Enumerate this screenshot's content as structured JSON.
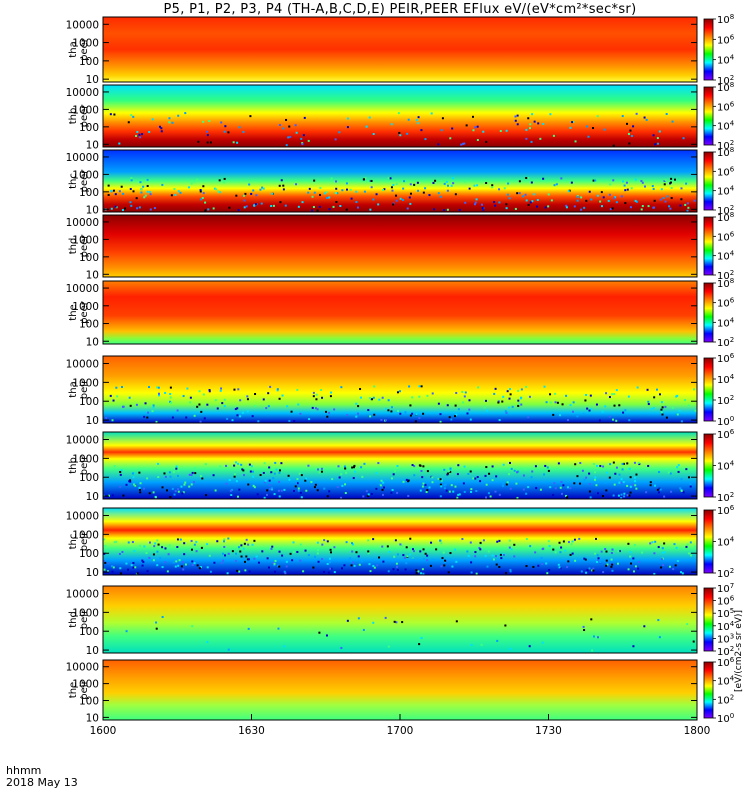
{
  "title": "P5, P1, P2, P3, P4 (TH-A,B,C,D,E) PEIR,PEER EFlux eV/(eV*cm²*sec*sr)",
  "time_axis": {
    "label": "hhmm",
    "date": "2018 May 13"
  },
  "colorbar_unit": "[eV/(cm2-s sr eV)]",
  "colors": {
    "dark_red": "#8b0000",
    "red": "#ff0000",
    "orange": "#ff7f00",
    "yellow": "#ffff00",
    "green": "#00ff00",
    "cyan": "#00ffff",
    "blue": "#0000ff",
    "violet": "#7f00ff"
  },
  "chart_data": {
    "type": "heatmap",
    "x": {
      "unit": "hhmm",
      "range": [
        "1600",
        "1800"
      ],
      "ticks": [
        "1600",
        "1630",
        "1700",
        "1730",
        "1800"
      ]
    },
    "y": {
      "scale": "log",
      "unit": "eV",
      "range": [
        7,
        25000
      ],
      "ticks": [
        "10",
        "100",
        "1000",
        "10000"
      ]
    },
    "panels": [
      {
        "label": "tha\npeer",
        "cb_max_exp": 8,
        "cb_min_exp": 2,
        "cb_ticks": [
          "8",
          "6",
          "4",
          "2"
        ],
        "bands": [
          [
            0.0,
            "#ff2a00"
          ],
          [
            0.25,
            "#ff5000"
          ],
          [
            0.5,
            "#ff3000"
          ],
          [
            0.75,
            "#ff9000"
          ],
          [
            0.9,
            "#ffd000"
          ],
          [
            1.0,
            "#ffff40"
          ]
        ],
        "noise": 0.0
      },
      {
        "label": "thb\npeer",
        "cb_max_exp": 8,
        "cb_min_exp": 2,
        "cb_ticks": [
          "8",
          "6",
          "4",
          "2"
        ],
        "bands": [
          [
            0.0,
            "#00e0ff"
          ],
          [
            0.25,
            "#30ff80"
          ],
          [
            0.45,
            "#ffff00"
          ],
          [
            0.6,
            "#ff9000"
          ],
          [
            0.75,
            "#ff3000"
          ],
          [
            0.88,
            "#c00000"
          ],
          [
            1.0,
            "#8b0000"
          ]
        ],
        "noise": 0.15
      },
      {
        "label": "thc\npeer",
        "cb_max_exp": 8,
        "cb_min_exp": 2,
        "cb_ticks": [
          "8",
          "6",
          "4",
          "2"
        ],
        "bands": [
          [
            0.0,
            "#0030ff"
          ],
          [
            0.35,
            "#00a0ff"
          ],
          [
            0.5,
            "#40ff80"
          ],
          [
            0.62,
            "#ffff00"
          ],
          [
            0.75,
            "#ff5000"
          ],
          [
            0.88,
            "#c00000"
          ],
          [
            1.0,
            "#8b0000"
          ]
        ],
        "noise": 0.35
      },
      {
        "label": "thd\npeer",
        "cb_max_exp": 8,
        "cb_min_exp": 2,
        "cb_ticks": [
          "8",
          "6",
          "4",
          "2"
        ],
        "bands": [
          [
            0.0,
            "#8b0000"
          ],
          [
            0.3,
            "#e00000"
          ],
          [
            0.6,
            "#ff4000"
          ],
          [
            0.85,
            "#ff9000"
          ],
          [
            1.0,
            "#ffd000"
          ]
        ],
        "noise": 0.0
      },
      {
        "label": "the\npeer",
        "cb_max_exp": 8,
        "cb_min_exp": 2,
        "cb_ticks": [
          "8",
          "6",
          "4",
          "2"
        ],
        "bands": [
          [
            0.0,
            "#ff8000"
          ],
          [
            0.25,
            "#ff2000"
          ],
          [
            0.55,
            "#ff4000"
          ],
          [
            0.8,
            "#ffc000"
          ],
          [
            0.92,
            "#80ff40"
          ],
          [
            1.0,
            "#40ff80"
          ]
        ],
        "noise": 0.0
      },
      {
        "label": "tha\npeir",
        "cb_max_exp": 6,
        "cb_min_exp": 0,
        "cb_ticks": [
          "6",
          "4",
          "2",
          "0"
        ],
        "bands": [
          [
            0.0,
            "#ff6000"
          ],
          [
            0.3,
            "#ffa000"
          ],
          [
            0.55,
            "#ffff00"
          ],
          [
            0.72,
            "#80ff40"
          ],
          [
            0.85,
            "#00c0ff"
          ],
          [
            1.0,
            "#0000c0"
          ]
        ],
        "noise": 0.3
      },
      {
        "label": "thb\npeir",
        "cb_max_exp": 6,
        "cb_min_exp": 2,
        "cb_ticks": [
          "6",
          "4",
          "2"
        ],
        "bands": [
          [
            0.0,
            "#00e0c0"
          ],
          [
            0.2,
            "#ffff00"
          ],
          [
            0.3,
            "#ff3000"
          ],
          [
            0.4,
            "#ffff00"
          ],
          [
            0.55,
            "#40ff80"
          ],
          [
            0.75,
            "#00a0ff"
          ],
          [
            1.0,
            "#0000c0"
          ]
        ],
        "noise": 0.45
      },
      {
        "label": "thc\npeir",
        "cb_max_exp": 6,
        "cb_min_exp": 2,
        "cb_ticks": [
          "6",
          "4",
          "2"
        ],
        "bands": [
          [
            0.0,
            "#00e0ff"
          ],
          [
            0.2,
            "#ffff00"
          ],
          [
            0.33,
            "#ff2000"
          ],
          [
            0.45,
            "#ffff00"
          ],
          [
            0.6,
            "#40ff80"
          ],
          [
            0.78,
            "#00a0ff"
          ],
          [
            1.0,
            "#0000c0"
          ]
        ],
        "noise": 0.45
      },
      {
        "label": "thd\npeir",
        "cb_max_exp": 7,
        "cb_min_exp": 2,
        "cb_ticks": [
          "7",
          "6",
          "5",
          "4",
          "3",
          "2"
        ],
        "bands": [
          [
            0.0,
            "#ff8000"
          ],
          [
            0.3,
            "#ffd000"
          ],
          [
            0.55,
            "#b0ff30"
          ],
          [
            0.75,
            "#40ff80"
          ],
          [
            1.0,
            "#00e0c0"
          ]
        ],
        "noise": 0.05
      },
      {
        "label": "the\npeir",
        "cb_max_exp": 6,
        "cb_min_exp": 0,
        "cb_ticks": [
          "6",
          "4",
          "2",
          "0"
        ],
        "bands": [
          [
            0.0,
            "#ff6000"
          ],
          [
            0.3,
            "#ffa000"
          ],
          [
            0.55,
            "#ffd000"
          ],
          [
            0.75,
            "#a0ff40"
          ],
          [
            1.0,
            "#40ff80"
          ]
        ],
        "noise": 0.0
      }
    ]
  }
}
